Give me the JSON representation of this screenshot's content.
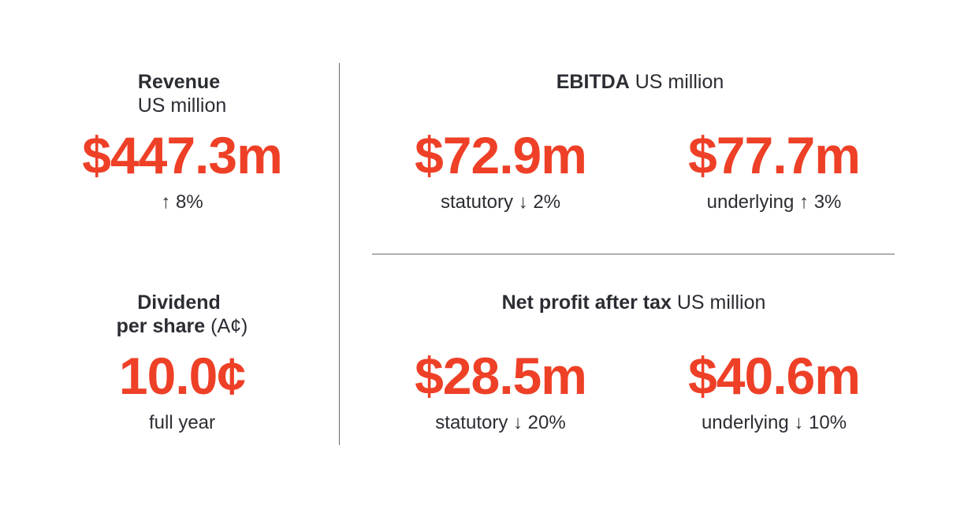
{
  "colors": {
    "accent": "#ee4027",
    "text": "#2b2d33"
  },
  "revenue": {
    "title": "Revenue",
    "unit": "US million",
    "value": "$447.3m",
    "change": "↑ 8%"
  },
  "dividend": {
    "title_line1": "Dividend",
    "title_line2": "per share",
    "unit": "(A¢)",
    "value": "10.0¢",
    "note": "full year"
  },
  "ebitda": {
    "title": "EBITDA",
    "unit": "US million",
    "statutory": {
      "value": "$72.9m",
      "label": "statutory ↓ 2%"
    },
    "underlying": {
      "value": "$77.7m",
      "label": "underlying ↑ 3%"
    }
  },
  "npat": {
    "title": "Net profit after tax",
    "unit": "US million",
    "statutory": {
      "value": "$28.5m",
      "label": "statutory ↓ 20%"
    },
    "underlying": {
      "value": "$40.6m",
      "label": "underlying ↓ 10%"
    }
  }
}
